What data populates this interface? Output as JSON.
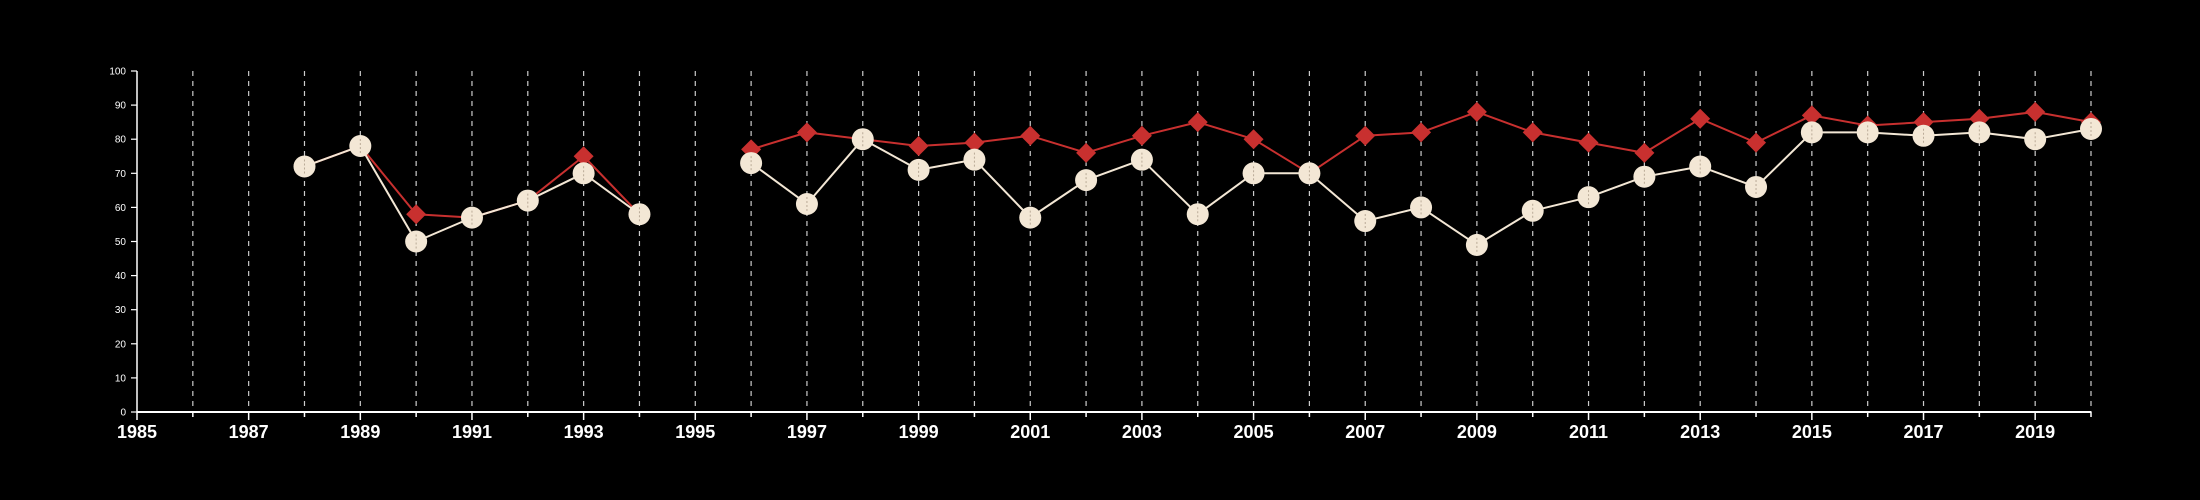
{
  "chart_data": {
    "type": "line",
    "title": "",
    "xlabel": "",
    "ylabel": "",
    "xlim": [
      1985,
      2020
    ],
    "ylim": [
      0,
      100
    ],
    "y_ticks": [
      0,
      10,
      20,
      30,
      40,
      50,
      60,
      70,
      80,
      90,
      100
    ],
    "x_tick_labels": [
      "1985",
      "1987",
      "1989",
      "1991",
      "1993",
      "1995",
      "1997",
      "1999",
      "2001",
      "2003",
      "2005",
      "2007",
      "2009",
      "2011",
      "2013",
      "2015",
      "2017",
      "2019"
    ],
    "grid": "vertical dashed lines at each year",
    "background": "#000000",
    "series": [
      {
        "marker": "diamond",
        "color": "#c8302f",
        "segments": [
          {
            "x": [
              1988,
              1989,
              1990,
              1991,
              1992,
              1993,
              1994
            ],
            "y": [
              72,
              78,
              58,
              57,
              62,
              75,
              58
            ]
          },
          {
            "x": [
              1996,
              1997,
              1998,
              1999,
              2000,
              2001,
              2002,
              2003,
              2004,
              2005,
              2006,
              2007,
              2008,
              2009,
              2010,
              2011,
              2012,
              2013,
              2014,
              2015,
              2016,
              2017,
              2018,
              2019,
              2020
            ],
            "y": [
              77,
              82,
              80,
              78,
              79,
              81,
              76,
              81,
              85,
              80,
              70,
              81,
              82,
              88,
              82,
              79,
              76,
              86,
              79,
              87,
              84,
              85,
              86,
              88,
              85
            ]
          }
        ]
      },
      {
        "marker": "circle",
        "color": "#f3e7d5",
        "segments": [
          {
            "x": [
              1988,
              1989,
              1990,
              1991,
              1992,
              1993,
              1994
            ],
            "y": [
              72,
              78,
              50,
              57,
              62,
              70,
              58
            ]
          },
          {
            "x": [
              1996,
              1997,
              1998,
              1999,
              2000,
              2001,
              2002,
              2003,
              2004,
              2005,
              2006,
              2007,
              2008,
              2009,
              2010,
              2011,
              2012,
              2013,
              2014,
              2015,
              2016,
              2017,
              2018,
              2019,
              2020
            ],
            "y": [
              73,
              61,
              80,
              71,
              74,
              57,
              68,
              74,
              58,
              70,
              70,
              56,
              60,
              49,
              59,
              63,
              69,
              72,
              66,
              82,
              82,
              81,
              82,
              80,
              83
            ]
          }
        ]
      }
    ]
  }
}
